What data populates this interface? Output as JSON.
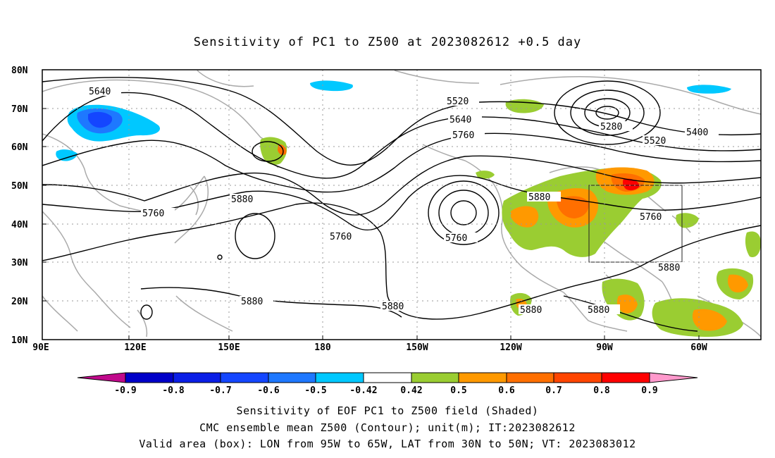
{
  "title": "Sensitivity of PC1 to Z500 at 2023082612 +0.5 day",
  "lat_ticks": [
    "80N",
    "70N",
    "60N",
    "50N",
    "40N",
    "30N",
    "20N",
    "10N"
  ],
  "lon_ticks": [
    "90E",
    "120E",
    "150E",
    "180",
    "150W",
    "120W",
    "90W",
    "60W"
  ],
  "contour_labels": {
    "c5640w": "5640",
    "c5520": "5520",
    "c5640": "5640",
    "c5760n": "5760",
    "c5280": "5280",
    "c5400": "5400",
    "c5520e": "5520",
    "c5760w": "5760",
    "c5880w": "5880",
    "c5760c": "5760",
    "c5760p": "5760",
    "c5880e": "5880",
    "c5760e": "5760",
    "c5880box": "5880",
    "c5880s1": "5880",
    "c5880s2": "5880",
    "c5880s3": "5880",
    "c5880s4": "5880"
  },
  "colorbar": {
    "labels": [
      "-0.9",
      "-0.8",
      "-0.7",
      "-0.6",
      "-0.5",
      "-0.42",
      "0.42",
      "0.5",
      "0.6",
      "0.7",
      "0.8",
      "0.9"
    ],
    "colors": {
      "low_tri": "#c0098b",
      "b1": "#0000c8",
      "b2": "#0a1ee6",
      "b3": "#1446ff",
      "b4": "#1e78ff",
      "b5": "#00c8ff",
      "white": "#ffffff",
      "g": "#9acd32",
      "o1": "#ff9900",
      "o2": "#ff6f00",
      "o3": "#ff4500",
      "r": "#ff0000",
      "high_tri": "#ff99cc"
    }
  },
  "captions": {
    "line1": "Sensitivity of EOF PC1 to Z500 field (Shaded)",
    "line2": "CMC ensemble mean Z500 (Contour); unit(m); IT:2023082612",
    "line3": "Valid area (box): LON from 95W to 65W, LAT from 30N to 50N; VT: 2023083012"
  },
  "valid_box": {
    "lon_min": -95,
    "lon_max": -65,
    "lat_min": 30,
    "lat_max": 50
  }
}
